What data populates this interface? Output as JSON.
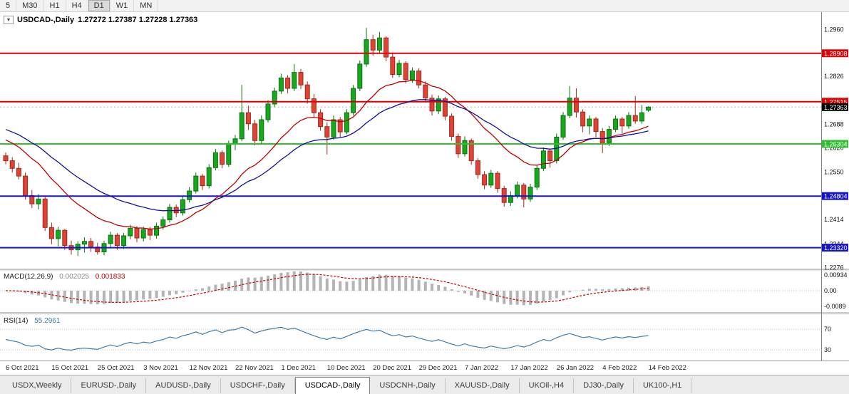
{
  "toolbar": {
    "timeframes": [
      "5",
      "M30",
      "H1",
      "H4",
      "D1",
      "W1",
      "MN"
    ],
    "active_index": 4
  },
  "chart_title": {
    "dropdown_icon": "▼",
    "symbol": "USDCAD-,Daily",
    "ohlc": "1.27272 1.27387 1.27228 1.27363"
  },
  "chart_data": {
    "type": "candlestick",
    "symbol": "USDCAD-,Daily",
    "timeframe": "Daily",
    "ohlc_display": {
      "open": "1.27272",
      "high": "1.27387",
      "low": "1.27228",
      "close": "1.27363"
    },
    "colors": {
      "up": "#18a81e",
      "up_border": "#0a700e",
      "down": "#e04334",
      "down_border": "#9c2a1e"
    },
    "x_labels": [
      "6 Oct 2021",
      "15 Oct 2021",
      "25 Oct 2021",
      "3 Nov 2021",
      "12 Nov 2021",
      "22 Nov 2021",
      "1 Dec 2021",
      "10 Dec 2021",
      "20 Dec 2021",
      "29 Dec 2021",
      "7 Jan 2022",
      "17 Jan 2022",
      "26 Jan 2022",
      "4 Feb 2022",
      "14 Feb 2022"
    ],
    "x_label_step": 7,
    "price_ticks": [
      "1.2960",
      "1.2826",
      "1.2688",
      "1.2620",
      "1.2550",
      "1.2414",
      "1.2344",
      "1.2276"
    ],
    "levels": [
      {
        "price": 1.28908,
        "label": "1.28908",
        "color": "#e00000",
        "type": "resistance"
      },
      {
        "price": 1.27515,
        "label": "1.27515",
        "color": "#e00000",
        "type": "resistance"
      },
      {
        "price": 1.26304,
        "label": "1.26304",
        "color": "#2fbf2f",
        "type": "support"
      },
      {
        "price": 1.24804,
        "label": "1.24804",
        "color": "#1414c8",
        "type": "support"
      },
      {
        "price": 1.2332,
        "label": "1.23320",
        "color": "#1414c8",
        "type": "support"
      }
    ],
    "current_price": {
      "value": 1.27363,
      "label": "1.27363",
      "badge_color": "#000000"
    },
    "moving_averages": [
      {
        "period": 16,
        "color": "#c00000",
        "seed": 1.265
      },
      {
        "period": 30,
        "color": "#10109a",
        "seed": 1.2678
      }
    ],
    "macd": {
      "label": "MACD(12,26,9)",
      "fast": 12,
      "slow": 26,
      "signal": 9,
      "value": "0.002025",
      "signal_value": "0.001833",
      "axis_labels": [
        "0.00934",
        "0.00",
        "-0.0089"
      ],
      "histogram_color": "#b4b4b4",
      "signal_color": "#cc0000"
    },
    "rsi": {
      "label": "RSI(14)",
      "period": 14,
      "value": "55.2961",
      "levels": [
        "70",
        "30"
      ],
      "line_color": "#3f7cac"
    },
    "candles": [
      [
        1.2596,
        1.2606,
        1.2572,
        1.2582
      ],
      [
        1.2582,
        1.2592,
        1.2548,
        1.256
      ],
      [
        1.256,
        1.2576,
        1.2528,
        1.2538
      ],
      [
        1.2538,
        1.2548,
        1.247,
        1.2482
      ],
      [
        1.2482,
        1.2498,
        1.2446,
        1.2458
      ],
      [
        1.2458,
        1.2486,
        1.2442,
        1.2472
      ],
      [
        1.2472,
        1.2478,
        1.238,
        1.239
      ],
      [
        1.239,
        1.2404,
        1.2342,
        1.2358
      ],
      [
        1.2358,
        1.2392,
        1.2336,
        1.2382
      ],
      [
        1.2382,
        1.2386,
        1.2326,
        1.2338
      ],
      [
        1.2338,
        1.2352,
        1.2312,
        1.2326
      ],
      [
        1.2326,
        1.235,
        1.2308,
        1.2342
      ],
      [
        1.2342,
        1.2362,
        1.2318,
        1.235
      ],
      [
        1.235,
        1.236,
        1.232,
        1.2334
      ],
      [
        1.2334,
        1.2346,
        1.2312,
        1.232
      ],
      [
        1.232,
        1.2352,
        1.231,
        1.2344
      ],
      [
        1.2344,
        1.2378,
        1.2334,
        1.2368
      ],
      [
        1.2368,
        1.2374,
        1.2326,
        1.2338
      ],
      [
        1.2338,
        1.2374,
        1.2328,
        1.2366
      ],
      [
        1.2366,
        1.2398,
        1.2356,
        1.2388
      ],
      [
        1.2388,
        1.2394,
        1.2348,
        1.236
      ],
      [
        1.236,
        1.2392,
        1.235,
        1.2384
      ],
      [
        1.2384,
        1.2392,
        1.2354,
        1.2368
      ],
      [
        1.2368,
        1.2404,
        1.2358,
        1.2394
      ],
      [
        1.2394,
        1.2422,
        1.2384,
        1.2412
      ],
      [
        1.2412,
        1.2458,
        1.2404,
        1.2448
      ],
      [
        1.2448,
        1.2456,
        1.242,
        1.2432
      ],
      [
        1.2432,
        1.248,
        1.2424,
        1.247
      ],
      [
        1.247,
        1.2506,
        1.2462,
        1.2495
      ],
      [
        1.2495,
        1.2548,
        1.2488,
        1.2538
      ],
      [
        1.2538,
        1.2544,
        1.2498,
        1.251
      ],
      [
        1.251,
        1.2572,
        1.2502,
        1.2562
      ],
      [
        1.2562,
        1.2616,
        1.2554,
        1.2605
      ],
      [
        1.2605,
        1.2612,
        1.256,
        1.2572
      ],
      [
        1.2572,
        1.264,
        1.2564,
        1.263
      ],
      [
        1.263,
        1.2656,
        1.2612,
        1.2645
      ],
      [
        1.2645,
        1.28,
        1.2638,
        1.272
      ],
      [
        1.272,
        1.274,
        1.267,
        1.2688
      ],
      [
        1.2688,
        1.27,
        1.2626,
        1.264
      ],
      [
        1.264,
        1.2712,
        1.2632,
        1.27
      ],
      [
        1.27,
        1.2756,
        1.2692,
        1.2745
      ],
      [
        1.2745,
        1.2792,
        1.2736,
        1.2782
      ],
      [
        1.2782,
        1.2832,
        1.2774,
        1.282
      ],
      [
        1.282,
        1.2828,
        1.2776,
        1.279
      ],
      [
        1.279,
        1.286,
        1.2782,
        1.2836
      ],
      [
        1.2836,
        1.2846,
        1.2788,
        1.28
      ],
      [
        1.28,
        1.281,
        1.2746,
        1.276
      ],
      [
        1.276,
        1.2774,
        1.2706,
        1.272
      ],
      [
        1.272,
        1.273,
        1.2668,
        1.268
      ],
      [
        1.268,
        1.2692,
        1.26,
        1.265
      ],
      [
        1.265,
        1.2712,
        1.2642,
        1.27
      ],
      [
        1.27,
        1.2708,
        1.265,
        1.2665
      ],
      [
        1.2665,
        1.273,
        1.2658,
        1.272
      ],
      [
        1.272,
        1.28,
        1.2712,
        1.279
      ],
      [
        1.279,
        1.287,
        1.2782,
        1.286
      ],
      [
        1.286,
        1.2964,
        1.2852,
        1.293
      ],
      [
        1.293,
        1.2944,
        1.2884,
        1.29
      ],
      [
        1.29,
        1.2952,
        1.2892,
        1.2935
      ],
      [
        1.2935,
        1.294,
        1.2868,
        1.288
      ],
      [
        1.288,
        1.289,
        1.282,
        1.283
      ],
      [
        1.283,
        1.2872,
        1.2822,
        1.2862
      ],
      [
        1.2862,
        1.2868,
        1.2804,
        1.2815
      ],
      [
        1.2815,
        1.285,
        1.2806,
        1.284
      ],
      [
        1.284,
        1.2848,
        1.279,
        1.28
      ],
      [
        1.28,
        1.281,
        1.275,
        1.2762
      ],
      [
        1.2762,
        1.2772,
        1.2712,
        1.2725
      ],
      [
        1.2725,
        1.277,
        1.2716,
        1.276
      ],
      [
        1.276,
        1.2766,
        1.2698,
        1.271
      ],
      [
        1.271,
        1.2718,
        1.264,
        1.2652
      ],
      [
        1.2652,
        1.266,
        1.259,
        1.2602
      ],
      [
        1.2602,
        1.2652,
        1.2594,
        1.264
      ],
      [
        1.264,
        1.2646,
        1.257,
        1.2582
      ],
      [
        1.2582,
        1.259,
        1.253,
        1.2542
      ],
      [
        1.2542,
        1.2552,
        1.25,
        1.2512
      ],
      [
        1.2512,
        1.2556,
        1.2504,
        1.2546
      ],
      [
        1.2546,
        1.2552,
        1.249,
        1.2502
      ],
      [
        1.2502,
        1.251,
        1.245,
        1.2462
      ],
      [
        1.2462,
        1.2494,
        1.2452,
        1.2482
      ],
      [
        1.2482,
        1.2522,
        1.2474,
        1.2512
      ],
      [
        1.2512,
        1.2518,
        1.2448,
        1.2472
      ],
      [
        1.2472,
        1.2516,
        1.2464,
        1.2506
      ],
      [
        1.2506,
        1.257,
        1.2498,
        1.256
      ],
      [
        1.256,
        1.262,
        1.2552,
        1.261
      ],
      [
        1.261,
        1.2616,
        1.2562,
        1.2582
      ],
      [
        1.2582,
        1.266,
        1.2574,
        1.265
      ],
      [
        1.265,
        1.2722,
        1.2642,
        1.2712
      ],
      [
        1.2712,
        1.2797,
        1.2704,
        1.2762
      ],
      [
        1.2762,
        1.279,
        1.2706,
        1.2722
      ],
      [
        1.2722,
        1.273,
        1.2664,
        1.2682
      ],
      [
        1.2682,
        1.2712,
        1.2658,
        1.2702
      ],
      [
        1.2702,
        1.2708,
        1.265,
        1.2666
      ],
      [
        1.2666,
        1.2676,
        1.2604,
        1.2632
      ],
      [
        1.2632,
        1.2682,
        1.2624,
        1.2672
      ],
      [
        1.2672,
        1.2712,
        1.2664,
        1.2702
      ],
      [
        1.2702,
        1.2708,
        1.266,
        1.2682
      ],
      [
        1.2682,
        1.2722,
        1.2674,
        1.2712
      ],
      [
        1.2712,
        1.2768,
        1.2688,
        1.2696
      ],
      [
        1.2696,
        1.2742,
        1.2688,
        1.272
      ],
      [
        1.27272,
        1.27387,
        1.27228,
        1.27363
      ]
    ]
  },
  "tabs": {
    "active_index": 4,
    "items": [
      "USDX,Weekly",
      "EURUSD-,Daily",
      "AUDUSD-,Daily",
      "USDCHF-,Daily",
      "USDCAD-,Daily",
      "USDCNH-,Daily",
      "XAUUSD-,Daily",
      "UKOil-,H4",
      "DJ30-,Daily",
      "UK100-,H1"
    ]
  }
}
